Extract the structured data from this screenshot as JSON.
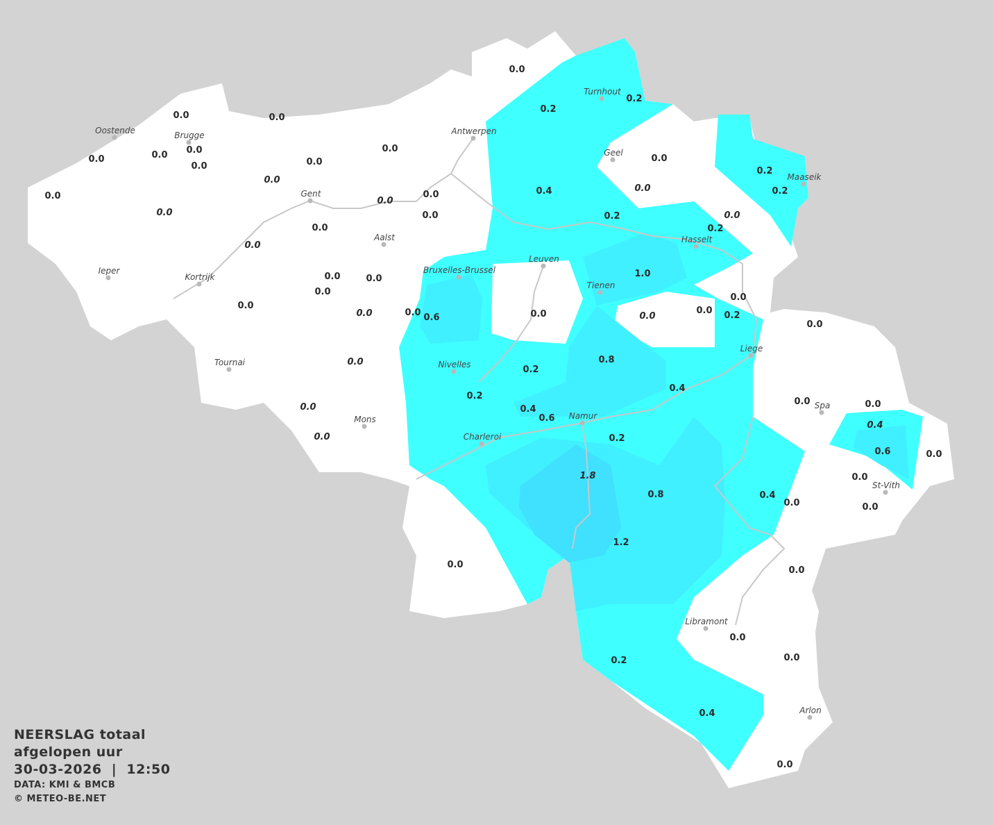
{
  "legend": {
    "title_line1": "NEERSLAG totaal",
    "title_line2": "afgelopen uur",
    "datetime": "30-03-2026  |  12:50",
    "source": "DATA: KMI & BMCB",
    "copyright": "© METEO-BE.NET"
  },
  "colors": {
    "background": "#d3d3d3",
    "land": "#ffffff",
    "rain_0_2": "#40ffff",
    "rain_0_6": "#40f0ff",
    "rain_1_2": "#40e0ff",
    "rivers": "#c8c8c8"
  },
  "unit": "mm",
  "cities": [
    "Oostende",
    "Brugge",
    "Antwerpen",
    "Turnhout",
    "Geel",
    "Maaseik",
    "Gent",
    "Aalst",
    "Hasselt",
    "Leuven",
    "Bruxelles-Brussel",
    "Ieper",
    "Kortrijk",
    "Tienen",
    "Liege",
    "Tournai",
    "Nivelles",
    "Spa",
    "Mons",
    "Namur",
    "Charleroi",
    "St-Vith",
    "Libramont",
    "Arlon"
  ],
  "station_values": [
    {
      "v": "0.0"
    },
    {
      "v": "0.2"
    },
    {
      "v": "0.2"
    },
    {
      "v": "0.0"
    },
    {
      "v": "0.0"
    },
    {
      "v": "0.0"
    },
    {
      "v": "0.0"
    },
    {
      "v": "0.0"
    },
    {
      "v": "0.0"
    },
    {
      "v": "0.0"
    },
    {
      "v": "0.0"
    },
    {
      "v": "0.0"
    },
    {
      "v": "0.0",
      "italic": true
    },
    {
      "v": "0.0"
    },
    {
      "v": "0.0",
      "italic": true
    },
    {
      "v": "0.4"
    },
    {
      "v": "0.0",
      "italic": true
    },
    {
      "v": "0.2"
    },
    {
      "v": "0.2"
    },
    {
      "v": "0.0"
    },
    {
      "v": "0.0",
      "italic": true
    },
    {
      "v": "0.0"
    },
    {
      "v": "0.0"
    },
    {
      "v": "0.2"
    },
    {
      "v": "0.0",
      "italic": true
    },
    {
      "v": "0.2"
    },
    {
      "v": "0.0",
      "italic": true
    },
    {
      "v": "1.0"
    },
    {
      "v": "0.0"
    },
    {
      "v": "0.0"
    },
    {
      "v": "0.0"
    },
    {
      "v": "0.0"
    },
    {
      "v": "0.0"
    },
    {
      "v": "0.0",
      "italic": true
    },
    {
      "v": "0.0"
    },
    {
      "v": "0.6"
    },
    {
      "v": "0.0"
    },
    {
      "v": "0.0",
      "italic": true
    },
    {
      "v": "0.0"
    },
    {
      "v": "0.2"
    },
    {
      "v": "0.0"
    },
    {
      "v": "0.8"
    },
    {
      "v": "0.0",
      "italic": true
    },
    {
      "v": "0.2"
    },
    {
      "v": "0.4"
    },
    {
      "v": "0.2"
    },
    {
      "v": "0.0",
      "italic": true
    },
    {
      "v": "0.4"
    },
    {
      "v": "0.6"
    },
    {
      "v": "0.0"
    },
    {
      "v": "0.0"
    },
    {
      "v": "0.4",
      "italic": true
    },
    {
      "v": "0.0",
      "italic": true
    },
    {
      "v": "0.2"
    },
    {
      "v": "0.6"
    },
    {
      "v": "0.0"
    },
    {
      "v": "1.8",
      "italic": true
    },
    {
      "v": "0.0"
    },
    {
      "v": "0.8"
    },
    {
      "v": "0.4"
    },
    {
      "v": "0.0"
    },
    {
      "v": "0.0"
    },
    {
      "v": "1.2"
    },
    {
      "v": "0.0"
    },
    {
      "v": "0.0"
    },
    {
      "v": "0.0"
    },
    {
      "v": "0.2"
    },
    {
      "v": "0.0"
    },
    {
      "v": "0.4"
    },
    {
      "v": "0.0"
    }
  ]
}
